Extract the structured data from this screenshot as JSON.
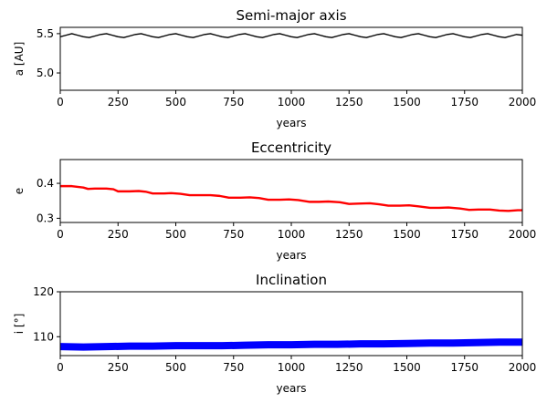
{
  "chart_data": [
    {
      "type": "line",
      "title": "Semi-major axis",
      "xlabel": "years",
      "ylabel": "a [AU]",
      "xlim": [
        0,
        2000
      ],
      "ylim": [
        4.78,
        5.58
      ],
      "xticks": [
        0,
        250,
        500,
        750,
        1000,
        1250,
        1500,
        1750,
        2000
      ],
      "xtick_labels": [
        "0",
        "250",
        "500",
        "750",
        "1000",
        "1250",
        "1500",
        "1750",
        "2000"
      ],
      "yticks": [
        5.0,
        5.5
      ],
      "ytick_labels": [
        "5.0",
        "5.5"
      ],
      "grid": false,
      "series": [
        {
          "color": "#000000",
          "x": [
            0,
            25,
            50,
            75,
            100,
            125,
            150,
            175,
            200,
            225,
            250,
            275,
            300,
            325,
            350,
            375,
            400,
            425,
            450,
            475,
            500,
            525,
            550,
            575,
            600,
            625,
            650,
            675,
            700,
            725,
            750,
            775,
            800,
            825,
            850,
            875,
            900,
            925,
            950,
            975,
            1000,
            1025,
            1050,
            1075,
            1100,
            1125,
            1150,
            1175,
            1200,
            1225,
            1250,
            1275,
            1300,
            1325,
            1350,
            1375,
            1400,
            1425,
            1450,
            1475,
            1500,
            1525,
            1550,
            1575,
            1600,
            1625,
            1650,
            1675,
            1700,
            1725,
            1750,
            1775,
            1800,
            1825,
            1850,
            1875,
            1900,
            1925,
            1950,
            1975,
            2000
          ],
          "values": [
            5.46,
            5.48,
            5.5,
            5.48,
            5.46,
            5.45,
            5.47,
            5.49,
            5.5,
            5.48,
            5.46,
            5.45,
            5.47,
            5.49,
            5.5,
            5.48,
            5.46,
            5.45,
            5.47,
            5.49,
            5.5,
            5.48,
            5.46,
            5.45,
            5.47,
            5.49,
            5.5,
            5.48,
            5.46,
            5.45,
            5.47,
            5.49,
            5.5,
            5.48,
            5.46,
            5.45,
            5.47,
            5.49,
            5.5,
            5.48,
            5.46,
            5.45,
            5.47,
            5.49,
            5.5,
            5.48,
            5.46,
            5.45,
            5.47,
            5.49,
            5.5,
            5.48,
            5.46,
            5.45,
            5.47,
            5.49,
            5.5,
            5.48,
            5.46,
            5.45,
            5.47,
            5.49,
            5.5,
            5.48,
            5.46,
            5.45,
            5.47,
            5.49,
            5.5,
            5.48,
            5.46,
            5.45,
            5.47,
            5.49,
            5.5,
            5.48,
            5.46,
            5.45,
            5.47,
            5.49,
            5.48
          ]
        }
      ]
    },
    {
      "type": "line",
      "title": "Eccentricity",
      "xlabel": "years",
      "ylabel": "e",
      "xlim": [
        0,
        2000
      ],
      "ylim": [
        0.288,
        0.468
      ],
      "xticks": [
        0,
        250,
        500,
        750,
        1000,
        1250,
        1500,
        1750,
        2000
      ],
      "xtick_labels": [
        "0",
        "250",
        "500",
        "750",
        "1000",
        "1250",
        "1500",
        "1750",
        "2000"
      ],
      "yticks": [
        0.3,
        0.4
      ],
      "ytick_labels": [
        "0.3",
        "0.4"
      ],
      "grid": false,
      "series": [
        {
          "color": "#ff0000",
          "x": [
            0,
            50,
            100,
            120,
            150,
            200,
            230,
            250,
            300,
            340,
            370,
            400,
            450,
            480,
            520,
            560,
            600,
            650,
            690,
            730,
            780,
            820,
            860,
            900,
            950,
            990,
            1030,
            1080,
            1120,
            1160,
            1210,
            1250,
            1290,
            1340,
            1380,
            1420,
            1470,
            1510,
            1550,
            1600,
            1640,
            1680,
            1730,
            1770,
            1810,
            1860,
            1900,
            1940,
            1980,
            2000
          ],
          "values": [
            0.392,
            0.392,
            0.388,
            0.384,
            0.385,
            0.385,
            0.383,
            0.377,
            0.377,
            0.378,
            0.376,
            0.371,
            0.371,
            0.372,
            0.37,
            0.366,
            0.366,
            0.366,
            0.364,
            0.359,
            0.359,
            0.36,
            0.358,
            0.353,
            0.353,
            0.354,
            0.352,
            0.347,
            0.347,
            0.348,
            0.346,
            0.341,
            0.342,
            0.343,
            0.34,
            0.336,
            0.336,
            0.337,
            0.334,
            0.33,
            0.33,
            0.331,
            0.328,
            0.324,
            0.325,
            0.325,
            0.322,
            0.321,
            0.323,
            0.323
          ]
        }
      ]
    },
    {
      "type": "line",
      "title": "Inclination",
      "xlabel": "years",
      "ylabel": "i [°]",
      "xlim": [
        0,
        2000
      ],
      "ylim": [
        105.8,
        120
      ],
      "xticks": [
        0,
        250,
        500,
        750,
        1000,
        1250,
        1500,
        1750,
        2000
      ],
      "xtick_labels": [
        "0",
        "250",
        "500",
        "750",
        "1000",
        "1250",
        "1500",
        "1750",
        "2000"
      ],
      "yticks": [
        110,
        120
      ],
      "ytick_labels": [
        "110",
        "120"
      ],
      "grid": false,
      "series": [
        {
          "color": "#0000ff",
          "x": [
            0,
            100,
            200,
            300,
            400,
            500,
            600,
            700,
            800,
            900,
            1000,
            1100,
            1200,
            1300,
            1400,
            1500,
            1600,
            1700,
            1800,
            1900,
            2000
          ],
          "values": [
            107.8,
            107.7,
            107.8,
            107.9,
            107.9,
            108.0,
            108.0,
            108.0,
            108.1,
            108.2,
            108.2,
            108.3,
            108.3,
            108.4,
            108.4,
            108.5,
            108.6,
            108.6,
            108.7,
            108.8,
            108.8
          ]
        }
      ]
    }
  ]
}
